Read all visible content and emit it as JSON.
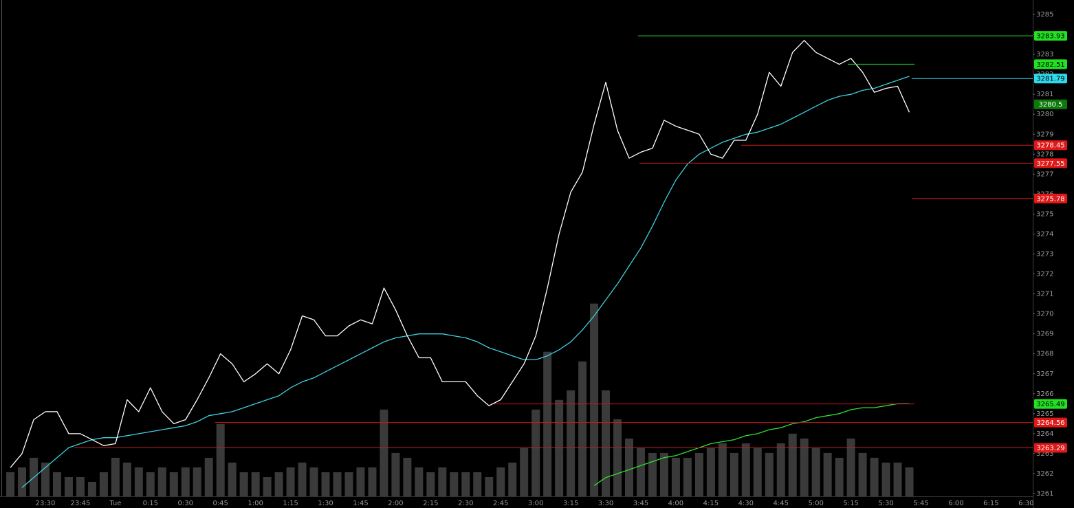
{
  "chart_data": {
    "type": "line",
    "categories": [
      null,
      null,
      null,
      "23:30",
      null,
      null,
      "23:45",
      null,
      null,
      "Tue",
      null,
      null,
      "0:15",
      null,
      null,
      "0:30",
      null,
      null,
      "0:45",
      null,
      null,
      "1:00",
      null,
      null,
      "1:15",
      null,
      null,
      "1:30",
      null,
      null,
      "1:45",
      null,
      null,
      "2:00",
      null,
      null,
      "2:15",
      null,
      null,
      "2:30",
      null,
      null,
      "2:45",
      null,
      null,
      "3:00",
      null,
      null,
      "3:15",
      null,
      null,
      "3:30",
      null,
      null,
      "3:45",
      null,
      null,
      "4:00",
      null,
      null,
      "4:15",
      null,
      null,
      "4:30",
      null,
      null,
      "4:45",
      null,
      null,
      "5:00",
      null,
      null,
      "5:15",
      null,
      null,
      "5:30",
      null,
      null,
      "5:45",
      null,
      null,
      "6:00",
      null,
      null,
      "6:15",
      null,
      null,
      "6:30"
    ],
    "series": [
      {
        "color": "#3a3a3a",
        "axis": "y2",
        "kind": "bar",
        "values": [
          5,
          6,
          8,
          7,
          5,
          4,
          4,
          3,
          5,
          8,
          7,
          6,
          5,
          6,
          5,
          6,
          6,
          8,
          15,
          7,
          5,
          5,
          4,
          5,
          6,
          7,
          6,
          5,
          5,
          5,
          6,
          6,
          18,
          9,
          8,
          6,
          5,
          6,
          5,
          5,
          5,
          4,
          6,
          7,
          10,
          18,
          30,
          20,
          22,
          28,
          40,
          22,
          16,
          12,
          10,
          9,
          9,
          8,
          8,
          9,
          10,
          11,
          9,
          11,
          10,
          9,
          11,
          13,
          12,
          10,
          9,
          8,
          12,
          9,
          8,
          7,
          7,
          6,
          null,
          null,
          null,
          null,
          null,
          null,
          null,
          null,
          null,
          null
        ]
      },
      {
        "color": "#3fd0e0",
        "values": [
          null,
          3261.3,
          3261.8,
          3262.3,
          3262.8,
          3263.3,
          3263.5,
          3263.7,
          3263.8,
          3263.8,
          3263.9,
          3264.0,
          3264.1,
          3264.2,
          3264.3,
          3264.4,
          3264.6,
          3264.9,
          3265.0,
          3265.1,
          3265.3,
          3265.5,
          3265.7,
          3265.9,
          3266.3,
          3266.6,
          3266.8,
          3267.1,
          3267.4,
          3267.7,
          3268.0,
          3268.3,
          3268.6,
          3268.8,
          3268.9,
          3269.0,
          3269.0,
          3269.0,
          3268.9,
          3268.8,
          3268.6,
          3268.3,
          3268.1,
          3267.9,
          3267.7,
          3267.7,
          3267.9,
          3268.2,
          3268.6,
          3269.2,
          3269.9,
          3270.7,
          3271.5,
          3272.4,
          3273.3,
          3274.4,
          3275.6,
          3276.7,
          3277.5,
          3278.0,
          3278.3,
          3278.6,
          3278.8,
          3279.0,
          3279.1,
          3279.3,
          3279.5,
          3279.8,
          3280.1,
          3280.4,
          3280.7,
          3280.9,
          3281.0,
          3281.2,
          3281.3,
          3281.5,
          3281.7,
          3281.9,
          null,
          null,
          null,
          null,
          null,
          null,
          null,
          null,
          null,
          null
        ]
      },
      {
        "color": "#30e030",
        "values": [
          null,
          null,
          null,
          null,
          null,
          null,
          null,
          null,
          null,
          null,
          null,
          null,
          null,
          null,
          null,
          null,
          null,
          null,
          null,
          null,
          null,
          null,
          null,
          null,
          null,
          null,
          null,
          null,
          null,
          null,
          null,
          null,
          null,
          null,
          null,
          null,
          null,
          null,
          null,
          null,
          null,
          null,
          null,
          null,
          null,
          null,
          null,
          null,
          null,
          null,
          3261.4,
          3261.8,
          3262.0,
          3262.2,
          3262.4,
          3262.6,
          3262.8,
          3262.9,
          3263.1,
          3263.3,
          3263.5,
          3263.6,
          3263.7,
          3263.9,
          3264.0,
          3264.2,
          3264.3,
          3264.5,
          3264.6,
          3264.8,
          3264.9,
          3265.0,
          3265.2,
          3265.3,
          3265.3,
          3265.4,
          3265.5,
          3265.5,
          null,
          null,
          null,
          null,
          null,
          null,
          null,
          null,
          null,
          null
        ]
      },
      {
        "color": "#ffffff",
        "values": [
          3262.3,
          3263.0,
          3264.7,
          3265.1,
          3265.1,
          3264.0,
          3264.0,
          3263.7,
          3263.4,
          3263.5,
          3265.7,
          3265.1,
          3266.3,
          3265.1,
          3264.5,
          3264.7,
          3265.7,
          3266.8,
          3268.0,
          3267.5,
          3266.6,
          3267.0,
          3267.5,
          3267.0,
          3268.2,
          3269.9,
          3269.7,
          3268.9,
          3268.9,
          3269.4,
          3269.7,
          3269.5,
          3271.3,
          3270.2,
          3268.9,
          3267.8,
          3267.8,
          3266.6,
          3266.6,
          3266.6,
          3265.9,
          3265.4,
          3265.7,
          3266.6,
          3267.5,
          3268.9,
          3271.3,
          3274.0,
          3276.1,
          3277.1,
          3279.5,
          3281.6,
          3279.2,
          3277.8,
          3278.1,
          3278.3,
          3279.7,
          3279.4,
          3279.2,
          3279.0,
          3278.0,
          3277.8,
          3278.7,
          3278.7,
          3280.0,
          3282.1,
          3281.4,
          3283.1,
          3283.7,
          3283.1,
          3282.8,
          3282.5,
          3282.8,
          3282.1,
          3281.1,
          3281.3,
          3281.4,
          3280.1,
          null,
          null,
          null,
          null,
          null,
          null,
          null,
          null,
          null,
          null
        ]
      }
    ],
    "ylim": [
      3261,
      3285
    ],
    "yticks": [
      3261,
      3262,
      3263,
      3264,
      3265,
      3266,
      3267,
      3268,
      3269,
      3270,
      3271,
      3272,
      3273,
      3274,
      3275,
      3276,
      3277,
      3278,
      3279,
      3280,
      3281,
      3282,
      3283,
      3284,
      3285
    ],
    "y2lim": [
      0,
      100
    ],
    "levels": [
      {
        "value": 3283.93,
        "color": "#22e022",
        "line_color": "#2ad82a"
      },
      {
        "value": 3282.51,
        "color": "#22e022",
        "line_color": "#2ad82a"
      },
      {
        "value": 3281.79,
        "color": "#2fd8ea",
        "line_color": "#2fd8ea"
      },
      {
        "value": 3280.5,
        "color": "#0b7a0b",
        "line_color": null
      },
      {
        "value": 3278.45,
        "color": "#e01818",
        "line_color": "#d01818"
      },
      {
        "value": 3277.55,
        "color": "#e01818",
        "line_color": "#d01818"
      },
      {
        "value": 3275.78,
        "color": "#e01818",
        "line_color": "#d01818"
      },
      {
        "value": 3265.49,
        "color": "#22e022",
        "line_color": "#d01818"
      },
      {
        "value": 3264.56,
        "color": "#e01818",
        "line_color": "#d01818"
      },
      {
        "value": 3263.29,
        "color": "#e01818",
        "line_color": "#d01818"
      }
    ]
  }
}
